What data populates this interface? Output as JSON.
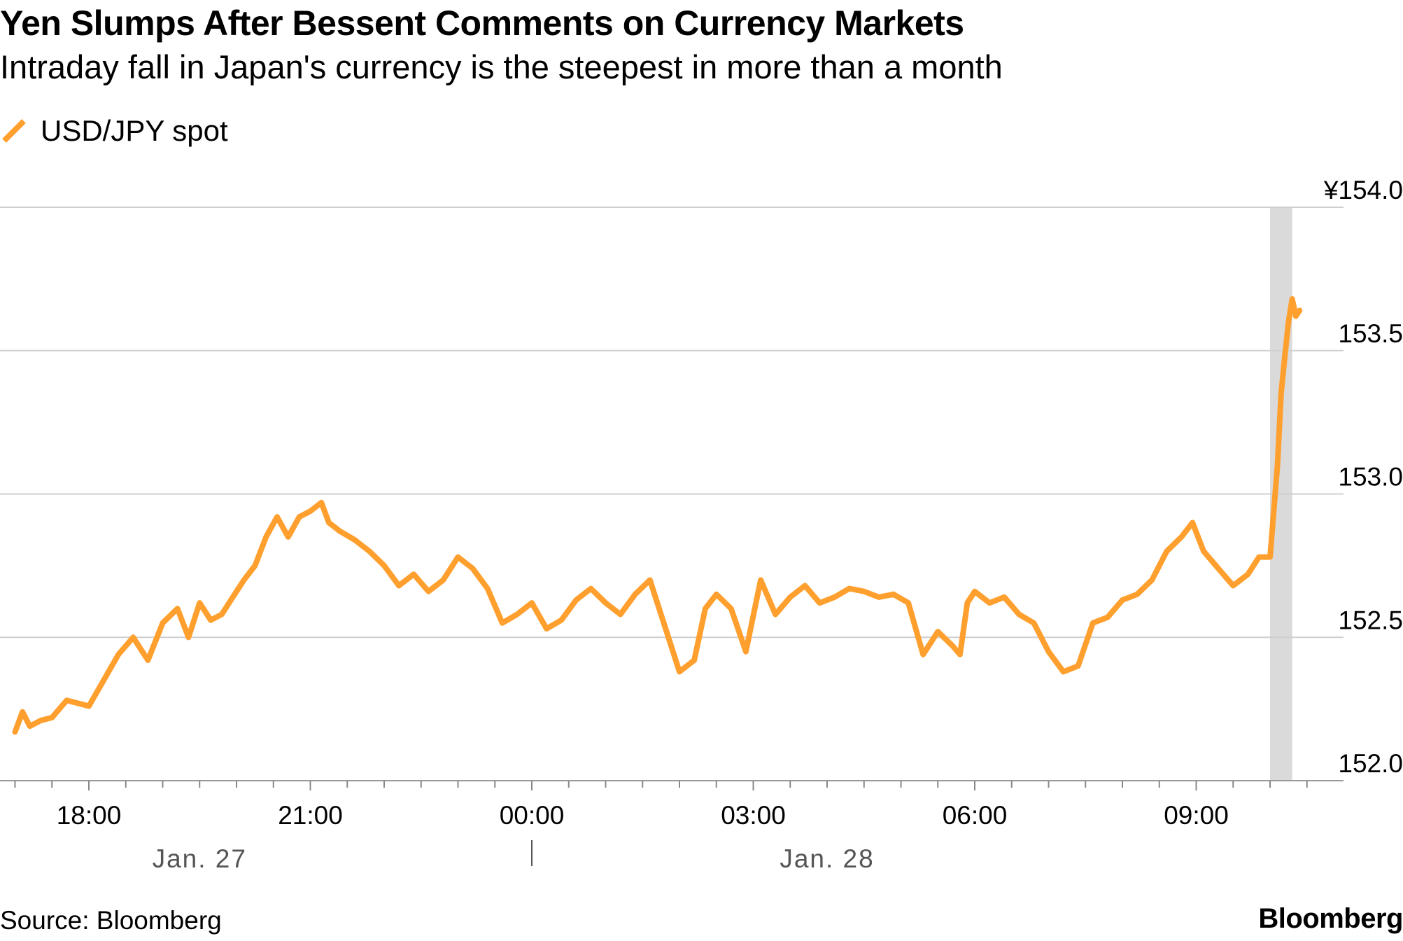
{
  "header": {
    "title": "Yen Slumps After Bessent Comments on Currency Markets",
    "subtitle": "Intraday fall in Japan's currency is the steepest in more than a month"
  },
  "footer": {
    "source": "Source: Bloomberg",
    "brand": "Bloomberg"
  },
  "colors": {
    "line": "#FF9F2E",
    "grid": "#cfcfcf",
    "highlight": "#dadada",
    "date_label": "#555555"
  },
  "chart_data": {
    "type": "line",
    "legend_position": "top-left",
    "grid": true,
    "y_axis_side": "right",
    "ylim": [
      152.0,
      154.0
    ],
    "y_ticks": [
      {
        "value": 154.0,
        "label": "¥154.0"
      },
      {
        "value": 153.5,
        "label": "153.5"
      },
      {
        "value": 153.0,
        "label": "153.0"
      },
      {
        "value": 152.5,
        "label": "152.5"
      },
      {
        "value": 152.0,
        "label": "152.0"
      }
    ],
    "xlim_hours": [
      17.0,
      34.5
    ],
    "x_ticks": [
      {
        "hour": 18,
        "label": "18:00"
      },
      {
        "hour": 21,
        "label": "21:00"
      },
      {
        "hour": 24,
        "label": "00:00"
      },
      {
        "hour": 27,
        "label": "03:00"
      },
      {
        "hour": 30,
        "label": "06:00"
      },
      {
        "hour": 33,
        "label": "09:00"
      }
    ],
    "date_labels": [
      {
        "center_hour": 19.5,
        "label": "Jan. 27"
      },
      {
        "center_hour": 28.0,
        "label": "Jan. 28"
      }
    ],
    "date_separator_hour": 24,
    "highlight_band_hours": [
      34.0,
      34.3
    ],
    "series": [
      {
        "name": "USD/JPY spot",
        "x_hours": [
          17.0,
          17.1,
          17.2,
          17.35,
          17.5,
          17.7,
          17.85,
          18.0,
          18.2,
          18.4,
          18.6,
          18.8,
          19.0,
          19.2,
          19.35,
          19.5,
          19.65,
          19.8,
          19.95,
          20.1,
          20.25,
          20.4,
          20.55,
          20.7,
          20.85,
          21.0,
          21.15,
          21.25,
          21.4,
          21.6,
          21.8,
          22.0,
          22.2,
          22.4,
          22.6,
          22.8,
          23.0,
          23.2,
          23.4,
          23.6,
          23.8,
          24.0,
          24.2,
          24.4,
          24.6,
          24.8,
          25.0,
          25.2,
          25.4,
          25.6,
          25.8,
          26.0,
          26.2,
          26.35,
          26.5,
          26.7,
          26.9,
          27.1,
          27.3,
          27.5,
          27.7,
          27.9,
          28.1,
          28.3,
          28.5,
          28.7,
          28.9,
          29.1,
          29.3,
          29.5,
          29.7,
          29.8,
          29.9,
          30.0,
          30.2,
          30.4,
          30.6,
          30.8,
          31.0,
          31.2,
          31.4,
          31.6,
          31.8,
          32.0,
          32.2,
          32.4,
          32.6,
          32.8,
          32.95,
          33.1,
          33.3,
          33.5,
          33.7,
          33.85,
          34.0,
          34.1,
          34.15,
          34.2,
          34.25,
          34.3,
          34.35,
          34.4
        ],
        "values": [
          152.17,
          152.24,
          152.19,
          152.21,
          152.22,
          152.28,
          152.27,
          152.26,
          152.35,
          152.44,
          152.5,
          152.42,
          152.55,
          152.6,
          152.5,
          152.62,
          152.56,
          152.58,
          152.64,
          152.7,
          152.75,
          152.85,
          152.92,
          152.85,
          152.92,
          152.94,
          152.97,
          152.9,
          152.87,
          152.84,
          152.8,
          152.75,
          152.68,
          152.72,
          152.66,
          152.7,
          152.78,
          152.74,
          152.67,
          152.55,
          152.58,
          152.62,
          152.53,
          152.56,
          152.63,
          152.67,
          152.62,
          152.58,
          152.65,
          152.7,
          152.54,
          152.38,
          152.42,
          152.6,
          152.65,
          152.6,
          152.45,
          152.7,
          152.58,
          152.64,
          152.68,
          152.62,
          152.64,
          152.67,
          152.66,
          152.64,
          152.65,
          152.62,
          152.44,
          152.52,
          152.47,
          152.44,
          152.62,
          152.66,
          152.62,
          152.64,
          152.58,
          152.55,
          152.45,
          152.38,
          152.4,
          152.55,
          152.57,
          152.63,
          152.65,
          152.7,
          152.8,
          152.85,
          152.9,
          152.8,
          152.74,
          152.68,
          152.72,
          152.78,
          152.78,
          153.1,
          153.35,
          153.48,
          153.6,
          153.68,
          153.62,
          153.64
        ]
      }
    ]
  }
}
